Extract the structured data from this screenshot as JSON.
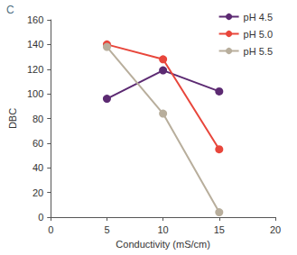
{
  "chart_data": {
    "type": "line",
    "title": "C",
    "x_label": "Conductivity (mS/cm)",
    "y_label": "DBC",
    "x": [
      5,
      10,
      15
    ],
    "series": [
      {
        "name": "pH 4.5",
        "color": "#5c2a72",
        "values": [
          96,
          119,
          102
        ],
        "marker": "circle"
      },
      {
        "name": "pH 5.0",
        "color": "#e8463b",
        "values": [
          140,
          128,
          55
        ],
        "marker": "circle"
      },
      {
        "name": "pH 5.5",
        "color": "#b8ae9c",
        "values": [
          138,
          84,
          4
        ],
        "marker": "circle"
      }
    ],
    "xlim": [
      0,
      20
    ],
    "xticks": [
      0,
      5,
      10,
      15,
      20
    ],
    "ylim": [
      0,
      160
    ],
    "yticks": [
      0,
      20,
      40,
      60,
      80,
      100,
      120,
      140,
      160
    ],
    "grid": false,
    "legend": "upper right"
  }
}
